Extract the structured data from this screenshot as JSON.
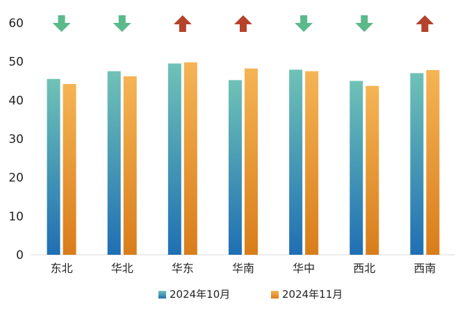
{
  "chart_data": {
    "type": "bar",
    "categories": [
      "东北",
      "华北",
      "华东",
      "华南",
      "华中",
      "西北",
      "西南"
    ],
    "series": [
      {
        "name": "2024年10月",
        "values": [
          45.5,
          47.5,
          49.5,
          45.2,
          47.9,
          45.0,
          47.0
        ],
        "colors": [
          "#6fc2b6",
          "#1f6fb4"
        ]
      },
      {
        "name": "2024年11月",
        "values": [
          44.2,
          46.2,
          49.8,
          48.2,
          47.5,
          43.7,
          47.8
        ],
        "colors": [
          "#f5b455",
          "#d97d1a"
        ]
      }
    ],
    "trend": [
      "down",
      "down",
      "up",
      "up",
      "down",
      "down",
      "up"
    ],
    "trend_colors": {
      "down": "#5bb98b",
      "up": "#b5422b"
    },
    "ylim": [
      0,
      60
    ],
    "yticks": [
      0,
      10,
      20,
      30,
      40,
      50,
      60
    ],
    "title": "",
    "xlabel": "",
    "ylabel": "",
    "legend_position": "bottom-center",
    "grid": false
  }
}
